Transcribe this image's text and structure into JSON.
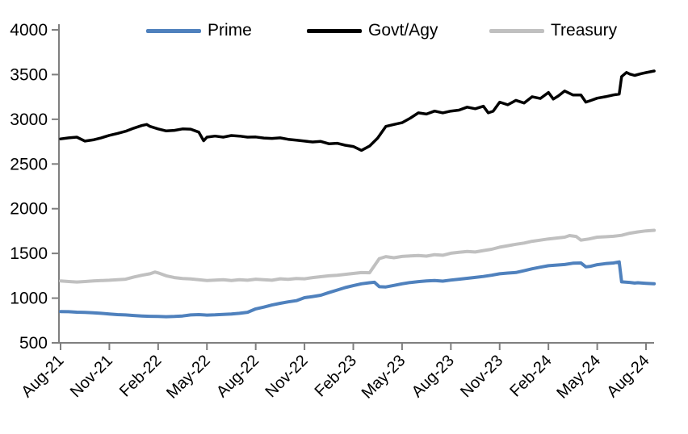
{
  "chart_data": {
    "type": "line",
    "title": "",
    "xlabel": "",
    "ylabel": "",
    "grid": false,
    "legend_position": "top",
    "axis_color": "#7f7f7f",
    "text_color": "#000000",
    "ylim": [
      500,
      4000
    ],
    "y_ticks": [
      500,
      1000,
      1500,
      2000,
      2500,
      3000,
      3500,
      4000
    ],
    "x_tick_labels": [
      "Aug-21",
      "Nov-21",
      "Feb-22",
      "May-22",
      "Aug-22",
      "Nov-22",
      "Feb-23",
      "May-23",
      "Aug-23",
      "Nov-23",
      "Feb-24",
      "May-24",
      "Aug-24"
    ],
    "x_tick_months": [
      0,
      3,
      6,
      9,
      12,
      15,
      18,
      21,
      24,
      27,
      30,
      33,
      36
    ],
    "x_unit": "months since Aug-21",
    "xlim_months": [
      0,
      36.5
    ],
    "series": [
      {
        "name": "Prime",
        "color": "#4f81bd",
        "stroke_width": 4,
        "x_months": [
          0,
          0.5,
          1,
          1.5,
          2,
          2.5,
          3,
          3.5,
          4,
          4.5,
          5,
          5.5,
          6,
          6.5,
          7,
          7.5,
          8,
          8.5,
          9,
          9.5,
          10,
          10.5,
          11,
          11.5,
          12,
          12.5,
          13,
          13.5,
          14,
          14.5,
          15,
          15.5,
          16,
          16.5,
          17,
          17.5,
          18,
          18.5,
          19,
          19.3,
          19.6,
          20,
          20.5,
          21,
          21.5,
          22,
          22.5,
          23,
          23.5,
          24,
          24.5,
          25,
          25.5,
          26,
          26.5,
          27,
          27.5,
          28,
          28.5,
          29,
          29.5,
          30,
          30.5,
          31,
          31.5,
          32,
          32.3,
          32.6,
          33,
          33.5,
          34,
          34.35,
          34.5,
          35,
          35.3,
          35.5,
          36,
          36.5
        ],
        "values": [
          850,
          848,
          843,
          840,
          836,
          830,
          822,
          816,
          812,
          806,
          800,
          797,
          795,
          792,
          795,
          800,
          812,
          816,
          810,
          813,
          818,
          822,
          830,
          842,
          880,
          900,
          923,
          942,
          958,
          972,
          1005,
          1018,
          1032,
          1062,
          1090,
          1118,
          1140,
          1160,
          1172,
          1177,
          1128,
          1125,
          1142,
          1160,
          1175,
          1185,
          1192,
          1196,
          1190,
          1202,
          1212,
          1222,
          1232,
          1242,
          1256,
          1272,
          1280,
          1287,
          1306,
          1328,
          1346,
          1362,
          1370,
          1376,
          1390,
          1393,
          1350,
          1356,
          1374,
          1386,
          1393,
          1405,
          1182,
          1176,
          1168,
          1172,
          1166,
          1160
        ]
      },
      {
        "name": "Govt/Agy",
        "color": "#000000",
        "stroke_width": 3.5,
        "x_months": [
          0,
          0.5,
          1,
          1.5,
          2,
          2.5,
          3,
          3.5,
          4,
          4.5,
          5,
          5.3,
          5.5,
          6,
          6.5,
          7,
          7.5,
          8,
          8.5,
          8.8,
          9,
          9.5,
          10,
          10.5,
          11,
          11.5,
          12,
          12.5,
          13,
          13.5,
          14,
          14.5,
          15,
          15.5,
          16,
          16.5,
          17,
          17.5,
          18,
          18.5,
          19,
          19.5,
          20,
          20.5,
          21,
          21.5,
          22,
          22.5,
          23,
          23.5,
          24,
          24.5,
          25,
          25.5,
          26,
          26.3,
          26.6,
          27,
          27.5,
          28,
          28.5,
          29,
          29.5,
          30,
          30.3,
          30.6,
          31,
          31.5,
          32,
          32.3,
          32.6,
          33,
          33.5,
          34,
          34.35,
          34.5,
          34.8,
          35,
          35.3,
          35.7,
          36,
          36.5
        ],
        "values": [
          2780,
          2792,
          2800,
          2756,
          2770,
          2792,
          2820,
          2842,
          2866,
          2900,
          2930,
          2942,
          2920,
          2892,
          2870,
          2876,
          2892,
          2890,
          2856,
          2760,
          2800,
          2812,
          2800,
          2818,
          2812,
          2800,
          2802,
          2790,
          2786,
          2792,
          2776,
          2766,
          2756,
          2746,
          2752,
          2726,
          2732,
          2710,
          2696,
          2652,
          2700,
          2790,
          2920,
          2942,
          2962,
          3012,
          3072,
          3058,
          3092,
          3072,
          3092,
          3102,
          3136,
          3118,
          3146,
          3072,
          3090,
          3192,
          3162,
          3212,
          3182,
          3252,
          3232,
          3300,
          3226,
          3260,
          3316,
          3272,
          3272,
          3192,
          3210,
          3236,
          3252,
          3272,
          3282,
          3478,
          3524,
          3506,
          3490,
          3510,
          3522,
          3540
        ]
      },
      {
        "name": "Treasury",
        "color": "#c0c0c0",
        "stroke_width": 4,
        "x_months": [
          0,
          0.5,
          1,
          1.5,
          2,
          2.5,
          3,
          3.5,
          4,
          4.5,
          5,
          5.5,
          5.8,
          6,
          6.5,
          7,
          7.5,
          8,
          8.5,
          9,
          9.5,
          10,
          10.5,
          11,
          11.5,
          12,
          12.5,
          13,
          13.5,
          14,
          14.5,
          15,
          15.5,
          16,
          16.5,
          17,
          17.5,
          18,
          18.5,
          19,
          19.6,
          20,
          20.5,
          21,
          21.5,
          22,
          22.5,
          23,
          23.5,
          24,
          24.5,
          25,
          25.5,
          26,
          26.5,
          27,
          27.5,
          28,
          28.5,
          29,
          29.5,
          30,
          30.5,
          31,
          31.3,
          31.7,
          32,
          32.5,
          33,
          33.5,
          34,
          34.5,
          35,
          35.5,
          36,
          36.5
        ],
        "values": [
          1192,
          1186,
          1180,
          1186,
          1192,
          1196,
          1200,
          1206,
          1212,
          1236,
          1256,
          1272,
          1292,
          1282,
          1250,
          1230,
          1220,
          1214,
          1206,
          1196,
          1202,
          1206,
          1196,
          1206,
          1200,
          1212,
          1206,
          1200,
          1216,
          1210,
          1220,
          1216,
          1230,
          1240,
          1250,
          1256,
          1266,
          1276,
          1286,
          1284,
          1442,
          1464,
          1452,
          1466,
          1472,
          1476,
          1470,
          1486,
          1480,
          1502,
          1512,
          1522,
          1516,
          1532,
          1546,
          1570,
          1586,
          1602,
          1616,
          1636,
          1648,
          1662,
          1672,
          1682,
          1700,
          1690,
          1648,
          1662,
          1682,
          1686,
          1692,
          1702,
          1726,
          1740,
          1752,
          1758
        ]
      }
    ]
  }
}
